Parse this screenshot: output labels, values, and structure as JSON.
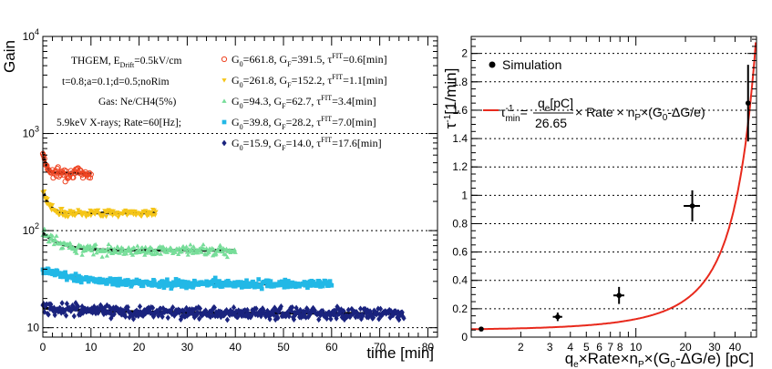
{
  "chart_data": [
    {
      "type": "scatter",
      "title": "",
      "xlabel": "time [min]",
      "ylabel": "Gain",
      "xscale": "linear",
      "yscale": "log",
      "xlim": [
        0,
        82
      ],
      "ylim": [
        8,
        10000
      ],
      "x_ticks": [
        0,
        10,
        20,
        30,
        40,
        50,
        60,
        70,
        80
      ],
      "y_ticks": [
        {
          "base": "10",
          "exp": "",
          "value": 10
        },
        {
          "base": "10",
          "exp": "2",
          "value": 100
        },
        {
          "base": "10",
          "exp": "3",
          "value": 1000
        },
        {
          "base": "10",
          "exp": "4",
          "value": 10000
        }
      ],
      "grid": "horizontal dashed at decades",
      "info_lines": [
        "THGEM, E",
        "Drift",
        "=0.5kV/cm",
        "t=0.8;a=0.1;d=0.5;noRim",
        "Gas: Ne/CH4(5%)",
        "5.9keV X-rays; Rate=60[Hz];"
      ],
      "series": [
        {
          "name": "G0=661.8, GF=391.5, τFIT=0.6[min]",
          "g0_label": "661.8",
          "gf_label": "391.5",
          "tau_label": "0.6",
          "color": "#ee4422",
          "marker": "open-circle",
          "G0": 661.8,
          "GF": 391.5,
          "tau": 0.6,
          "t_end": 10,
          "noise": 0.06
        },
        {
          "name": "G0=261.8, GF=152.2, τFIT=1.1[min]",
          "g0_label": "261.8",
          "gf_label": "152.2",
          "tau_label": "1.1",
          "color": "#f5c518",
          "marker": "triangle-down",
          "G0": 261.8,
          "GF": 152.2,
          "tau": 1.1,
          "t_end": 23.5,
          "noise": 0.04
        },
        {
          "name": "G0=94.3, GF=62.7, τFIT=3.4[min]",
          "g0_label": "94.3",
          "gf_label": "62.7",
          "tau_label": "3.4",
          "color": "#77dd99",
          "marker": "triangle-up",
          "G0": 94.3,
          "GF": 62.7,
          "tau": 3.4,
          "t_end": 40,
          "noise": 0.05
        },
        {
          "name": "G0=39.8, GF=28.2, τFIT=7.0[min]",
          "g0_label": "39.8",
          "gf_label": "28.2",
          "tau_label": "7.0",
          "color": "#22b8e6",
          "marker": "square",
          "G0": 39.8,
          "GF": 28.2,
          "tau": 7.0,
          "t_end": 60,
          "noise": 0.04
        },
        {
          "name": "G0=15.9, GF=14.0, τFIT=17.6[min]",
          "g0_label": "15.9",
          "gf_label": "14.0",
          "tau_label": "17.6",
          "color": "#1a237e",
          "marker": "diamond",
          "G0": 15.9,
          "GF": 14.0,
          "tau": 17.6,
          "t_end": 75,
          "noise": 0.06
        }
      ],
      "fit_color": "#000000"
    },
    {
      "type": "scatter",
      "title": "",
      "xlabel_parts": [
        "q",
        "e",
        "×Rate×n",
        "P",
        "×(G",
        "0",
        "-ΔG/e) [pC]"
      ],
      "ylabel_parts": [
        "τ",
        "-1",
        "[1/min]"
      ],
      "xscale": "log",
      "yscale": "linear",
      "xlim": [
        1,
        54
      ],
      "ylim": [
        0,
        2.12
      ],
      "x_tick_labels": [
        {
          "label": "2",
          "value": 2
        },
        {
          "label": "3",
          "value": 3
        },
        {
          "label": "4",
          "value": 4
        },
        {
          "label": "5",
          "value": 5
        },
        {
          "label": "6",
          "value": 6
        },
        {
          "label": "7",
          "value": 7
        },
        {
          "label": "8",
          "value": 8
        },
        {
          "label": "10",
          "value": 10
        },
        {
          "label": "20",
          "value": 20
        },
        {
          "label": "30",
          "value": 30
        },
        {
          "label": "40",
          "value": 40
        }
      ],
      "y_ticks": [
        {
          "label": "0",
          "value": 0
        },
        {
          "label": "0.2",
          "value": 0.2
        },
        {
          "label": "0.4",
          "value": 0.4
        },
        {
          "label": "0.6",
          "value": 0.6
        },
        {
          "label": "0.8",
          "value": 0.8
        },
        {
          "label": "1",
          "value": 1.0
        },
        {
          "label": "1.2",
          "value": 1.2
        },
        {
          "label": "1.4",
          "value": 1.4
        },
        {
          "label": "1.6",
          "value": 1.6
        },
        {
          "label": "1.8",
          "value": 1.8
        },
        {
          "label": "2",
          "value": 2.0
        }
      ],
      "grid": "horizontal dashed at y ticks",
      "legend_simulation": "Simulation",
      "legend_fit": {
        "tau": "τ",
        "sup": "-1",
        "sub": "min",
        "eq": "=",
        "num": "q",
        "num_sub": "e",
        "num_rest": "[pC]",
        "den": "26.65",
        "rest1": "× Rate × n",
        "rest1_sub": "P",
        "rest2": "×(G",
        "rest2_sub": "0",
        "rest3": "-ΔG/e)"
      },
      "points": [
        {
          "x": 1.15,
          "y": 0.057,
          "xerr": 0.0,
          "yerr": 0.0
        },
        {
          "x": 3.35,
          "y": 0.143,
          "xerr": 0.22,
          "yerr": 0.03
        },
        {
          "x": 7.9,
          "y": 0.294,
          "xerr": 0.6,
          "yerr": 0.06
        },
        {
          "x": 22.0,
          "y": 0.925,
          "xerr": 2.5,
          "yerr": 0.11
        },
        {
          "x": 48.0,
          "y": 1.65,
          "xerr": 1.6,
          "yerr": 0.27
        }
      ],
      "fit": {
        "a": 0.0476,
        "b": 0.0375,
        "color": "#e8291c"
      }
    }
  ]
}
